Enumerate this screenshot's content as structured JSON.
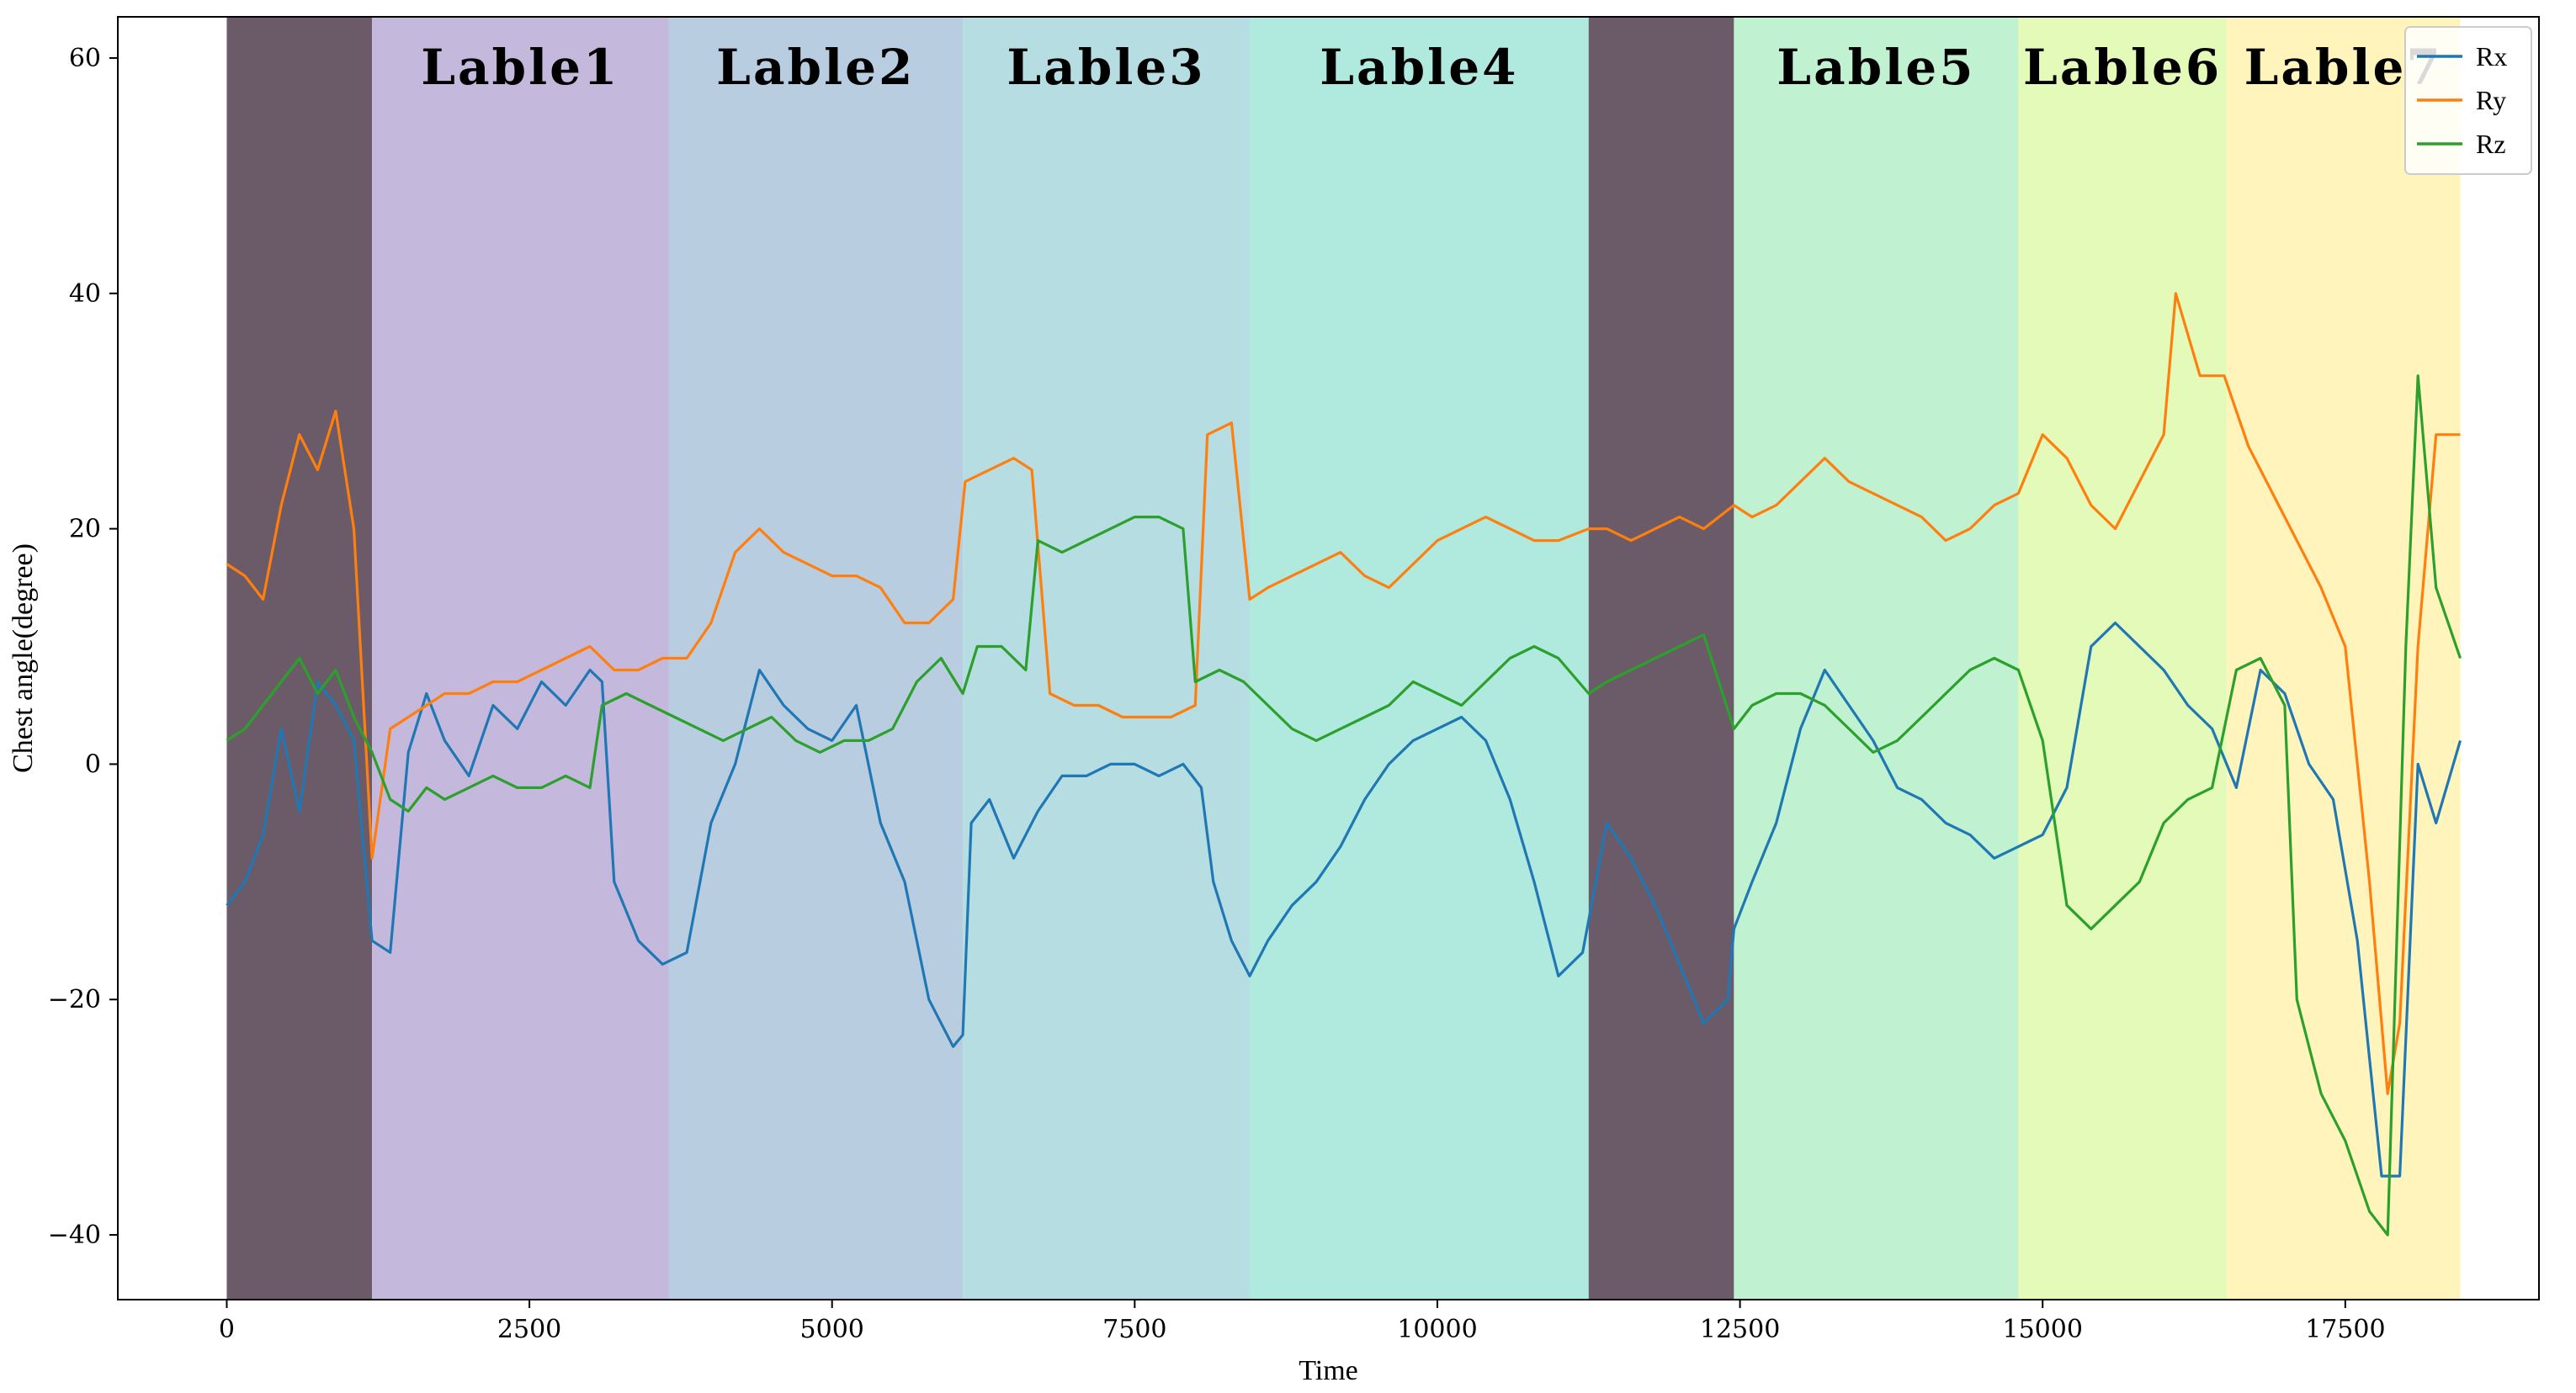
{
  "chart_data": {
    "type": "line",
    "title": "",
    "xlabel": "Time",
    "ylabel": "Chest angle(degree)",
    "xlim": [
      -900,
      19100
    ],
    "ylim": [
      -45.5,
      63.5
    ],
    "xticks": [
      0,
      2500,
      5000,
      7500,
      10000,
      12500,
      15000,
      17500
    ],
    "xtick_labels": [
      "0",
      "2500",
      "5000",
      "7500",
      "10000",
      "12500",
      "15000",
      "17500"
    ],
    "yticks": [
      -40,
      -20,
      0,
      20,
      40,
      60
    ],
    "ytick_labels": [
      "−40",
      "−20",
      "0",
      "20",
      "40",
      "60"
    ],
    "legend_position": "top-right",
    "regions": [
      {
        "label": "",
        "start": 0,
        "end": 1200,
        "color": "#6b5a68"
      },
      {
        "label": "Lable1",
        "start": 1200,
        "end": 3650,
        "color": "#c4b8dc"
      },
      {
        "label": "Lable2",
        "start": 3650,
        "end": 6080,
        "color": "#b9cde0"
      },
      {
        "label": "Lable3",
        "start": 6080,
        "end": 8450,
        "color": "#b6dde2"
      },
      {
        "label": "Lable4",
        "start": 8450,
        "end": 11250,
        "color": "#b0e9de"
      },
      {
        "label": "",
        "start": 11250,
        "end": 12450,
        "color": "#6b5a68"
      },
      {
        "label": "Lable5",
        "start": 12450,
        "end": 14800,
        "color": "#c0f1d0"
      },
      {
        "label": "Lable6",
        "start": 14800,
        "end": 16520,
        "color": "#e3fab8"
      },
      {
        "label": "Lable7",
        "start": 16520,
        "end": 18450,
        "color": "#fff5bc"
      }
    ],
    "series": [
      {
        "name": "Rx",
        "color": "#1f77b4",
        "points": [
          [
            0,
            -12
          ],
          [
            150,
            -10
          ],
          [
            300,
            -6
          ],
          [
            450,
            3
          ],
          [
            600,
            -4
          ],
          [
            750,
            7
          ],
          [
            900,
            5
          ],
          [
            1050,
            2
          ],
          [
            1200,
            -15
          ],
          [
            1350,
            -16
          ],
          [
            1500,
            1
          ],
          [
            1650,
            6
          ],
          [
            1800,
            2
          ],
          [
            2000,
            -1
          ],
          [
            2200,
            5
          ],
          [
            2400,
            3
          ],
          [
            2600,
            7
          ],
          [
            2800,
            5
          ],
          [
            3000,
            8
          ],
          [
            3100,
            7
          ],
          [
            3200,
            -10
          ],
          [
            3400,
            -15
          ],
          [
            3600,
            -17
          ],
          [
            3800,
            -16
          ],
          [
            4000,
            -5
          ],
          [
            4200,
            0
          ],
          [
            4400,
            8
          ],
          [
            4600,
            5
          ],
          [
            4800,
            3
          ],
          [
            5000,
            2
          ],
          [
            5200,
            5
          ],
          [
            5400,
            -5
          ],
          [
            5600,
            -10
          ],
          [
            5800,
            -20
          ],
          [
            6000,
            -24
          ],
          [
            6080,
            -23
          ],
          [
            6150,
            -5
          ],
          [
            6300,
            -3
          ],
          [
            6500,
            -8
          ],
          [
            6700,
            -4
          ],
          [
            6900,
            -1
          ],
          [
            7100,
            -1
          ],
          [
            7300,
            0
          ],
          [
            7500,
            0
          ],
          [
            7700,
            -1
          ],
          [
            7900,
            0
          ],
          [
            8050,
            -2
          ],
          [
            8150,
            -10
          ],
          [
            8300,
            -15
          ],
          [
            8450,
            -18
          ],
          [
            8600,
            -15
          ],
          [
            8800,
            -12
          ],
          [
            9000,
            -10
          ],
          [
            9200,
            -7
          ],
          [
            9400,
            -3
          ],
          [
            9600,
            0
          ],
          [
            9800,
            2
          ],
          [
            10000,
            3
          ],
          [
            10200,
            4
          ],
          [
            10400,
            2
          ],
          [
            10600,
            -3
          ],
          [
            10800,
            -10
          ],
          [
            11000,
            -18
          ],
          [
            11200,
            -16
          ],
          [
            11400,
            -5
          ],
          [
            11600,
            -8
          ],
          [
            11800,
            -12
          ],
          [
            12000,
            -17
          ],
          [
            12200,
            -22
          ],
          [
            12400,
            -20
          ],
          [
            12450,
            -14
          ],
          [
            12600,
            -10
          ],
          [
            12800,
            -5
          ],
          [
            13000,
            3
          ],
          [
            13200,
            8
          ],
          [
            13400,
            5
          ],
          [
            13600,
            2
          ],
          [
            13800,
            -2
          ],
          [
            14000,
            -3
          ],
          [
            14200,
            -5
          ],
          [
            14400,
            -6
          ],
          [
            14600,
            -8
          ],
          [
            14800,
            -7
          ],
          [
            15000,
            -6
          ],
          [
            15200,
            -2
          ],
          [
            15400,
            10
          ],
          [
            15600,
            12
          ],
          [
            15800,
            10
          ],
          [
            16000,
            8
          ],
          [
            16200,
            5
          ],
          [
            16400,
            3
          ],
          [
            16600,
            -2
          ],
          [
            16800,
            8
          ],
          [
            17000,
            6
          ],
          [
            17200,
            0
          ],
          [
            17400,
            -3
          ],
          [
            17600,
            -15
          ],
          [
            17800,
            -35
          ],
          [
            17950,
            -35
          ],
          [
            18100,
            0
          ],
          [
            18250,
            -5
          ],
          [
            18450,
            2
          ]
        ]
      },
      {
        "name": "Ry",
        "color": "#ff7f0e",
        "points": [
          [
            0,
            17
          ],
          [
            150,
            16
          ],
          [
            300,
            14
          ],
          [
            450,
            22
          ],
          [
            600,
            28
          ],
          [
            750,
            25
          ],
          [
            900,
            30
          ],
          [
            1050,
            20
          ],
          [
            1200,
            -8
          ],
          [
            1350,
            3
          ],
          [
            1500,
            4
          ],
          [
            1650,
            5
          ],
          [
            1800,
            6
          ],
          [
            2000,
            6
          ],
          [
            2200,
            7
          ],
          [
            2400,
            7
          ],
          [
            2600,
            8
          ],
          [
            2800,
            9
          ],
          [
            3000,
            10
          ],
          [
            3200,
            8
          ],
          [
            3400,
            8
          ],
          [
            3600,
            9
          ],
          [
            3800,
            9
          ],
          [
            4000,
            12
          ],
          [
            4200,
            18
          ],
          [
            4400,
            20
          ],
          [
            4600,
            18
          ],
          [
            4800,
            17
          ],
          [
            5000,
            16
          ],
          [
            5200,
            16
          ],
          [
            5400,
            15
          ],
          [
            5600,
            12
          ],
          [
            5800,
            12
          ],
          [
            6000,
            14
          ],
          [
            6100,
            24
          ],
          [
            6300,
            25
          ],
          [
            6500,
            26
          ],
          [
            6650,
            25
          ],
          [
            6800,
            6
          ],
          [
            7000,
            5
          ],
          [
            7200,
            5
          ],
          [
            7400,
            4
          ],
          [
            7600,
            4
          ],
          [
            7800,
            4
          ],
          [
            8000,
            5
          ],
          [
            8100,
            28
          ],
          [
            8300,
            29
          ],
          [
            8450,
            14
          ],
          [
            8600,
            15
          ],
          [
            8800,
            16
          ],
          [
            9000,
            17
          ],
          [
            9200,
            18
          ],
          [
            9400,
            16
          ],
          [
            9600,
            15
          ],
          [
            9800,
            17
          ],
          [
            10000,
            19
          ],
          [
            10200,
            20
          ],
          [
            10400,
            21
          ],
          [
            10600,
            20
          ],
          [
            10800,
            19
          ],
          [
            11000,
            19
          ],
          [
            11250,
            20
          ],
          [
            11400,
            20
          ],
          [
            11600,
            19
          ],
          [
            11800,
            20
          ],
          [
            12000,
            21
          ],
          [
            12200,
            20
          ],
          [
            12450,
            22
          ],
          [
            12600,
            21
          ],
          [
            12800,
            22
          ],
          [
            13000,
            24
          ],
          [
            13200,
            26
          ],
          [
            13400,
            24
          ],
          [
            13600,
            23
          ],
          [
            13800,
            22
          ],
          [
            14000,
            21
          ],
          [
            14200,
            19
          ],
          [
            14400,
            20
          ],
          [
            14600,
            22
          ],
          [
            14800,
            23
          ],
          [
            15000,
            28
          ],
          [
            15200,
            26
          ],
          [
            15400,
            22
          ],
          [
            15600,
            20
          ],
          [
            15800,
            24
          ],
          [
            16000,
            28
          ],
          [
            16100,
            40
          ],
          [
            16300,
            33
          ],
          [
            16500,
            33
          ],
          [
            16700,
            27
          ],
          [
            16900,
            23
          ],
          [
            17100,
            19
          ],
          [
            17300,
            15
          ],
          [
            17500,
            10
          ],
          [
            17700,
            -10
          ],
          [
            17850,
            -28
          ],
          [
            17950,
            -22
          ],
          [
            18100,
            10
          ],
          [
            18250,
            28
          ],
          [
            18450,
            28
          ]
        ]
      },
      {
        "name": "Rz",
        "color": "#2ca02c",
        "points": [
          [
            0,
            2
          ],
          [
            150,
            3
          ],
          [
            300,
            5
          ],
          [
            450,
            7
          ],
          [
            600,
            9
          ],
          [
            750,
            6
          ],
          [
            900,
            8
          ],
          [
            1050,
            4
          ],
          [
            1200,
            1
          ],
          [
            1350,
            -3
          ],
          [
            1500,
            -4
          ],
          [
            1650,
            -2
          ],
          [
            1800,
            -3
          ],
          [
            2000,
            -2
          ],
          [
            2200,
            -1
          ],
          [
            2400,
            -2
          ],
          [
            2600,
            -2
          ],
          [
            2800,
            -1
          ],
          [
            3000,
            -2
          ],
          [
            3100,
            5
          ],
          [
            3300,
            6
          ],
          [
            3500,
            5
          ],
          [
            3700,
            4
          ],
          [
            3900,
            3
          ],
          [
            4100,
            2
          ],
          [
            4300,
            3
          ],
          [
            4500,
            4
          ],
          [
            4700,
            2
          ],
          [
            4900,
            1
          ],
          [
            5100,
            2
          ],
          [
            5300,
            2
          ],
          [
            5500,
            3
          ],
          [
            5700,
            7
          ],
          [
            5900,
            9
          ],
          [
            6080,
            6
          ],
          [
            6200,
            10
          ],
          [
            6400,
            10
          ],
          [
            6600,
            8
          ],
          [
            6700,
            19
          ],
          [
            6900,
            18
          ],
          [
            7100,
            19
          ],
          [
            7300,
            20
          ],
          [
            7500,
            21
          ],
          [
            7700,
            21
          ],
          [
            7900,
            20
          ],
          [
            8000,
            7
          ],
          [
            8200,
            8
          ],
          [
            8400,
            7
          ],
          [
            8600,
            5
          ],
          [
            8800,
            3
          ],
          [
            9000,
            2
          ],
          [
            9200,
            3
          ],
          [
            9400,
            4
          ],
          [
            9600,
            5
          ],
          [
            9800,
            7
          ],
          [
            10000,
            6
          ],
          [
            10200,
            5
          ],
          [
            10400,
            7
          ],
          [
            10600,
            9
          ],
          [
            10800,
            10
          ],
          [
            11000,
            9
          ],
          [
            11250,
            6
          ],
          [
            11400,
            7
          ],
          [
            11600,
            8
          ],
          [
            11800,
            9
          ],
          [
            12000,
            10
          ],
          [
            12200,
            11
          ],
          [
            12450,
            3
          ],
          [
            12600,
            5
          ],
          [
            12800,
            6
          ],
          [
            13000,
            6
          ],
          [
            13200,
            5
          ],
          [
            13400,
            3
          ],
          [
            13600,
            1
          ],
          [
            13800,
            2
          ],
          [
            14000,
            4
          ],
          [
            14200,
            6
          ],
          [
            14400,
            8
          ],
          [
            14600,
            9
          ],
          [
            14800,
            8
          ],
          [
            15000,
            2
          ],
          [
            15200,
            -12
          ],
          [
            15400,
            -14
          ],
          [
            15600,
            -12
          ],
          [
            15800,
            -10
          ],
          [
            16000,
            -5
          ],
          [
            16200,
            -3
          ],
          [
            16400,
            -2
          ],
          [
            16600,
            8
          ],
          [
            16800,
            9
          ],
          [
            17000,
            5
          ],
          [
            17100,
            -20
          ],
          [
            17300,
            -28
          ],
          [
            17500,
            -32
          ],
          [
            17700,
            -38
          ],
          [
            17850,
            -40
          ],
          [
            18000,
            10
          ],
          [
            18100,
            33
          ],
          [
            18250,
            15
          ],
          [
            18450,
            9
          ]
        ]
      }
    ]
  }
}
